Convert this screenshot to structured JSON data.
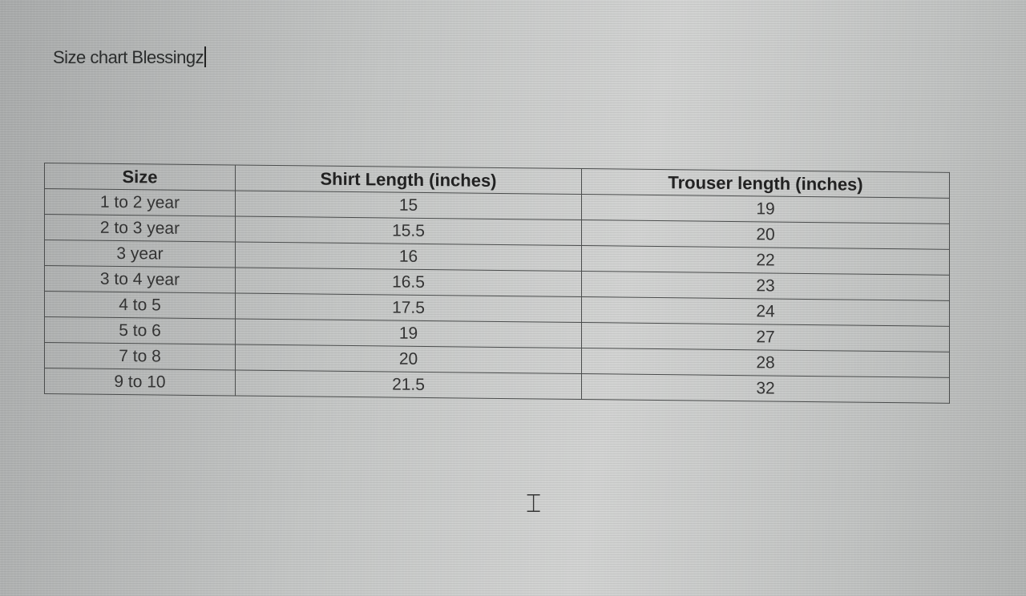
{
  "document": {
    "title": "Size chart Blessingz",
    "table": {
      "headers": [
        "Size",
        "Shirt Length (inches)",
        "Trouser length (inches)"
      ],
      "rows": [
        [
          "1 to 2 year",
          "15",
          "19"
        ],
        [
          "2 to 3 year",
          "15.5",
          "20"
        ],
        [
          "3 year",
          "16",
          "22"
        ],
        [
          "3 to 4 year",
          "16.5",
          "23"
        ],
        [
          "4 to 5",
          "17.5",
          "24"
        ],
        [
          "5 to 6",
          "19",
          "27"
        ],
        [
          "7 to 8",
          "20",
          "28"
        ],
        [
          "9 to 10",
          "21.5",
          "32"
        ]
      ]
    }
  }
}
